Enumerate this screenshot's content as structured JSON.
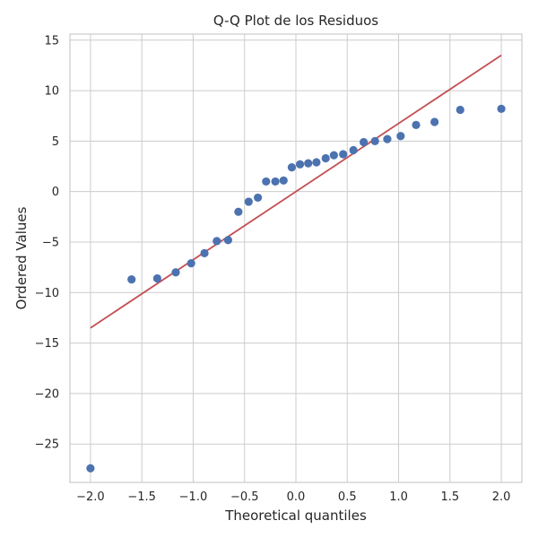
{
  "chart_data": {
    "type": "scatter",
    "title": "Q-Q Plot de los Residuos",
    "xlabel": "Theoretical quantiles",
    "ylabel": "Ordered Values",
    "xlim": [
      -2.2,
      2.2
    ],
    "ylim": [
      -28.8,
      15.6
    ],
    "x_ticks": [
      -2.0,
      -1.5,
      -1.0,
      -0.5,
      0.0,
      0.5,
      1.0,
      1.5,
      2.0
    ],
    "x_tick_labels": [
      "−2.0",
      "−1.5",
      "−1.0",
      "−0.5",
      "0.0",
      "0.5",
      "1.0",
      "1.5",
      "2.0"
    ],
    "y_ticks": [
      15,
      10,
      5,
      0,
      -5,
      -10,
      -15,
      -20,
      -25
    ],
    "y_tick_labels": [
      "15",
      "10",
      "5",
      "0",
      "−5",
      "−10",
      "−15",
      "−20",
      "−25"
    ],
    "grid": true,
    "points": {
      "color": "#4c72b0",
      "x": [
        -2.0,
        -1.6,
        -1.35,
        -1.17,
        -1.02,
        -0.89,
        -0.77,
        -0.66,
        -0.56,
        -0.46,
        -0.37,
        -0.29,
        -0.2,
        -0.12,
        -0.04,
        0.04,
        0.12,
        0.2,
        0.29,
        0.37,
        0.46,
        0.56,
        0.66,
        0.77,
        0.89,
        1.02,
        1.17,
        1.35,
        1.6,
        2.0
      ],
      "y": [
        -27.4,
        -8.7,
        -8.6,
        -8.0,
        -7.1,
        -6.1,
        -4.9,
        -4.8,
        -2.0,
        -1.0,
        -0.6,
        1.0,
        1.0,
        1.1,
        2.4,
        2.7,
        2.8,
        2.9,
        3.3,
        3.6,
        3.7,
        4.1,
        4.9,
        5.0,
        5.2,
        5.5,
        6.6,
        6.9,
        8.1,
        8.2
      ]
    },
    "fit_line": {
      "color": "#c44e52",
      "x": [
        -2.0,
        2.0
      ],
      "y": [
        -13.5,
        13.5
      ]
    }
  }
}
